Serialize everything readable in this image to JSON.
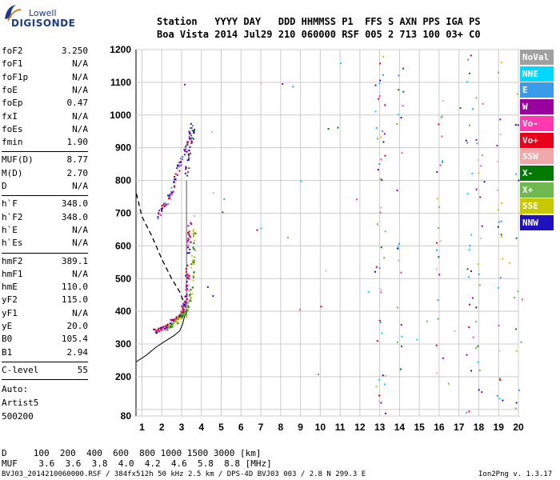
{
  "logo": {
    "top": "Lowell",
    "main": "DIGISONDE"
  },
  "header": {
    "row1": "Station   YYYY DAY   DDD HHMMSS P1  FFS S AXN PPS IGA PS",
    "row2": "Boa Vista 2014 Jul29 210 060000 RSF 005 2 713 100 03+ C0"
  },
  "params": [
    {
      "group": [
        {
          "name": "foF2",
          "value": "3.250"
        },
        {
          "name": "foF1",
          "value": "N/A"
        },
        {
          "name": "foF1p",
          "value": "N/A"
        },
        {
          "name": "foE",
          "value": "N/A"
        },
        {
          "name": "foEp",
          "value": "0.47"
        },
        {
          "name": "fxI",
          "value": "N/A"
        },
        {
          "name": "foEs",
          "value": "N/A"
        },
        {
          "name": "fmin",
          "value": "1.90"
        }
      ]
    },
    {
      "group": [
        {
          "name": "MUF(D)",
          "value": "8.77"
        },
        {
          "name": "M(D)",
          "value": "2.70"
        },
        {
          "name": "D",
          "value": "N/A"
        }
      ]
    },
    {
      "group": [
        {
          "name": "h`F",
          "value": "348.0"
        },
        {
          "name": "h`F2",
          "value": "348.0"
        },
        {
          "name": "h`E",
          "value": "N/A"
        },
        {
          "name": "h`Es",
          "value": "N/A"
        }
      ]
    },
    {
      "group": [
        {
          "name": "hmF2",
          "value": "389.1"
        },
        {
          "name": "hmF1",
          "value": "N/A"
        },
        {
          "name": "hmE",
          "value": "110.0"
        },
        {
          "name": "yF2",
          "value": "115.0"
        },
        {
          "name": "yF1",
          "value": "N/A"
        },
        {
          "name": "yE",
          "value": "20.0"
        },
        {
          "name": "B0",
          "value": "105.4"
        },
        {
          "name": "B1",
          "value": "2.94"
        }
      ]
    },
    {
      "group": [
        {
          "name": "C-level",
          "value": "55"
        }
      ]
    }
  ],
  "auto": {
    "line1": "Auto:",
    "line2": "Artist5",
    "line3": "500200"
  },
  "footer": {
    "line1": "D     100  200  400  600  800 1000 1500 3000 [km]",
    "line2": "MUF    3.6  3.6  3.8  4.0  4.2  4.6  5.8  8.8 [MHz]",
    "line3_left": "BVJ03_2014210060000.RSF / 384fx512h 50 kHz 2.5 km / DPS-4D BVJ03 003 / 2.8 N 299.3 E",
    "line3_right": "Ion2Png v. 1.3.17"
  },
  "legend": [
    {
      "label": "NoVal",
      "color": "#a0a0a0"
    },
    {
      "label": "NNE",
      "color": "#00d8ff"
    },
    {
      "label": "E",
      "color": "#3a9bea"
    },
    {
      "label": "W",
      "color": "#9a00a0"
    },
    {
      "label": "Vo-",
      "color": "#ff3ab0"
    },
    {
      "label": "Vo+",
      "color": "#e8001a"
    },
    {
      "label": "SSW",
      "color": "#f0a8a8"
    },
    {
      "label": "X-",
      "color": "#007a00"
    },
    {
      "label": "X+",
      "color": "#70b850"
    },
    {
      "label": "SSE",
      "color": "#c8c800"
    },
    {
      "label": "NNW",
      "color": "#2010c0"
    }
  ],
  "chart_data": {
    "type": "scatter",
    "xlim": [
      0.7,
      20.0
    ],
    "ylim": [
      80,
      1200
    ],
    "x_ticks": [
      1,
      2,
      3,
      4,
      5,
      6,
      7,
      8,
      9,
      10,
      11,
      12,
      13,
      14,
      15,
      16,
      17,
      18,
      19,
      20
    ],
    "y_ticks": [
      80,
      100,
      200,
      300,
      400,
      500,
      600,
      700,
      800,
      900,
      1000,
      1100,
      1200
    ],
    "y_tick_labels": [
      "80",
      "",
      "200",
      "300",
      "400",
      "500",
      "600",
      "700",
      "800",
      "900",
      "1000",
      "1100",
      "1200"
    ],
    "grid": true,
    "profile_curve": [
      [
        0.7,
        245
      ],
      [
        1.2,
        265
      ],
      [
        1.7,
        290
      ],
      [
        2.2,
        310
      ],
      [
        2.6,
        325
      ],
      [
        2.9,
        340
      ],
      [
        3.05,
        360
      ],
      [
        3.15,
        385
      ],
      [
        3.2,
        389
      ]
    ],
    "dashed_curve": [
      [
        0.72,
        760
      ],
      [
        1.0,
        690
      ],
      [
        1.5,
        630
      ],
      [
        2.0,
        560
      ],
      [
        2.5,
        500
      ],
      [
        2.9,
        460
      ],
      [
        3.1,
        430
      ],
      [
        3.25,
        400
      ]
    ],
    "f_line_x": 3.25,
    "trace_o_lower": [
      [
        1.6,
        340
      ],
      [
        1.8,
        345
      ],
      [
        2.0,
        350
      ],
      [
        2.2,
        358
      ],
      [
        2.4,
        366
      ],
      [
        2.6,
        375
      ],
      [
        2.8,
        385
      ],
      [
        2.95,
        395
      ],
      [
        3.05,
        410
      ],
      [
        3.15,
        430
      ],
      [
        3.2,
        460
      ],
      [
        3.25,
        500
      ],
      [
        3.3,
        560
      ],
      [
        3.35,
        620
      ],
      [
        3.38,
        680
      ]
    ],
    "trace_x_lower": [
      [
        2.2,
        350
      ],
      [
        2.4,
        358
      ],
      [
        2.6,
        366
      ],
      [
        2.8,
        376
      ],
      [
        3.0,
        388
      ],
      [
        3.15,
        400
      ],
      [
        3.3,
        420
      ],
      [
        3.4,
        450
      ],
      [
        3.5,
        500
      ],
      [
        3.55,
        550
      ],
      [
        3.6,
        600
      ],
      [
        3.62,
        650
      ]
    ],
    "trace_upper_o": [
      [
        1.8,
        690
      ],
      [
        2.0,
        720
      ],
      [
        2.2,
        730
      ],
      [
        2.4,
        760
      ],
      [
        2.6,
        800
      ],
      [
        2.8,
        840
      ],
      [
        3.0,
        870
      ],
      [
        3.2,
        900
      ],
      [
        3.35,
        930
      ],
      [
        3.45,
        970
      ]
    ],
    "trace_upper_x": [
      [
        3.2,
        820
      ],
      [
        3.3,
        860
      ],
      [
        3.4,
        890
      ],
      [
        3.5,
        930
      ],
      [
        3.55,
        960
      ]
    ]
  }
}
